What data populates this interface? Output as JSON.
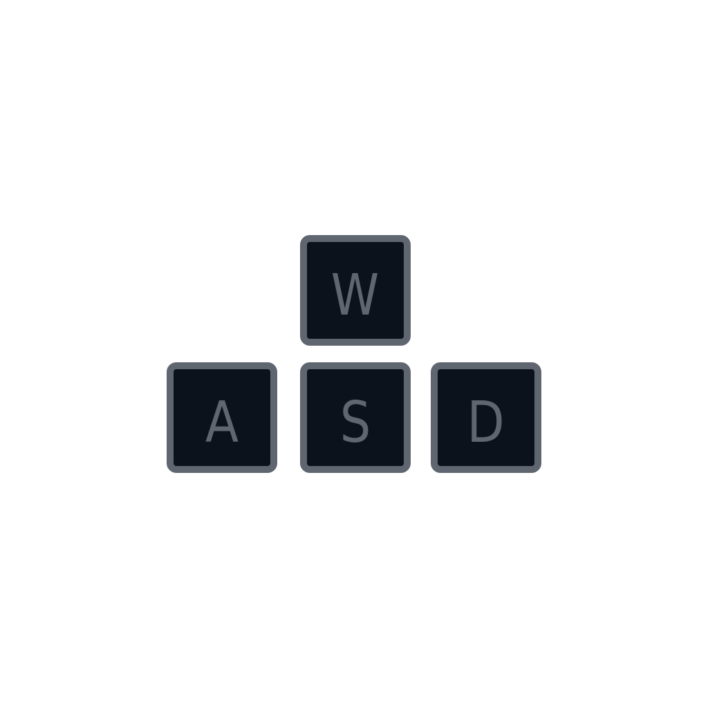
{
  "colors": {
    "background": "#ffffff",
    "key_fill": "#0c121b",
    "key_border": "#5f6670",
    "key_text": "#5f6670"
  },
  "keys": {
    "w": {
      "label": "W"
    },
    "a": {
      "label": "A"
    },
    "s": {
      "label": "S"
    },
    "d": {
      "label": "D"
    }
  }
}
